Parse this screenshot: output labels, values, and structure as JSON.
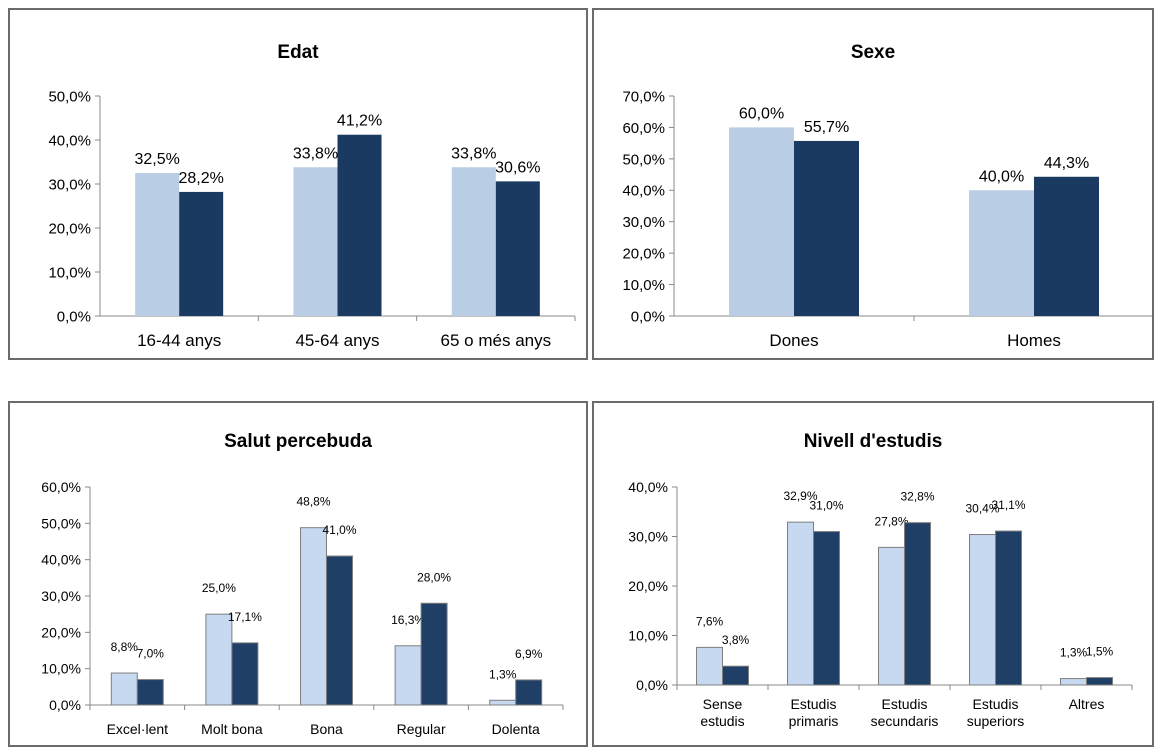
{
  "chart_data": [
    {
      "type": "bar",
      "title": "Edat",
      "categories": [
        "16-44 anys",
        "45-64 anys",
        "65 o més anys"
      ],
      "series": [
        {
          "values": [
            32.5,
            33.8,
            33.8
          ],
          "labels": [
            "32,5%",
            "33,8%",
            "33,8%"
          ]
        },
        {
          "values": [
            28.2,
            41.2,
            30.6
          ],
          "labels": [
            "28,2%",
            "41,2%",
            "30,6%"
          ]
        }
      ],
      "yticks": [
        "0,0%",
        "10,0%",
        "20,0%",
        "30,0%",
        "40,0%",
        "50,0%"
      ],
      "ylim": [
        0,
        50
      ],
      "grid": false
    },
    {
      "type": "bar",
      "title": "Sexe",
      "categories": [
        "Dones",
        "Homes"
      ],
      "series": [
        {
          "values": [
            60.0,
            40.0
          ],
          "labels": [
            "60,0%",
            "40,0%"
          ]
        },
        {
          "values": [
            55.7,
            44.3
          ],
          "labels": [
            "55,7%",
            "44,3%"
          ]
        }
      ],
      "yticks": [
        "0,0%",
        "10,0%",
        "20,0%",
        "30,0%",
        "40,0%",
        "50,0%",
        "60,0%",
        "70,0%"
      ],
      "ylim": [
        0,
        70
      ],
      "grid": false
    },
    {
      "type": "bar",
      "title": "Salut percebuda",
      "categories": [
        "Excel·lent",
        "Molt bona",
        "Bona",
        "Regular",
        "Dolenta"
      ],
      "series": [
        {
          "values": [
            8.8,
            25.0,
            48.8,
            16.3,
            1.3
          ],
          "labels": [
            "8,8%",
            "25,0%",
            "48,8%",
            "16,3%",
            "1,3%"
          ]
        },
        {
          "values": [
            7.0,
            17.1,
            41.0,
            28.0,
            6.9
          ],
          "labels": [
            "7,0%",
            "17,1%",
            "41,0%",
            "28,0%",
            "6,9%"
          ]
        }
      ],
      "yticks": [
        "0,0%",
        "10,0%",
        "20,0%",
        "30,0%",
        "40,0%",
        "50,0%",
        "60,0%"
      ],
      "ylim": [
        0,
        60
      ],
      "grid": false
    },
    {
      "type": "bar",
      "title": "Nivell d'estudis",
      "categories": [
        [
          "Sense",
          "estudis"
        ],
        [
          "Estudis",
          "primaris"
        ],
        [
          "Estudis",
          "secundaris"
        ],
        [
          "Estudis",
          "superiors"
        ],
        [
          "Altres"
        ]
      ],
      "series": [
        {
          "values": [
            7.6,
            32.9,
            27.8,
            30.4,
            1.3
          ],
          "labels": [
            "7,6%",
            "32,9%",
            "27,8%",
            "30,4%",
            "1,3%"
          ]
        },
        {
          "values": [
            3.8,
            31.0,
            32.8,
            31.1,
            1.5
          ],
          "labels": [
            "3,8%",
            "31,0%",
            "32,8%",
            "31,1%",
            "1,5%"
          ]
        }
      ],
      "yticks": [
        "0,0%",
        "10,0%",
        "20,0%",
        "30,0%",
        "40,0%"
      ],
      "ylim": [
        0,
        40
      ],
      "grid": false
    }
  ],
  "colors": {
    "series_light": "#b9cde4",
    "series_dark": "#1b3a62",
    "series_light_bordered": "#c6d9f1",
    "series_dark_bordered": "#1f3f66",
    "bar_border": "#7f7f7f",
    "axis": "#888888",
    "text": "#000000"
  }
}
